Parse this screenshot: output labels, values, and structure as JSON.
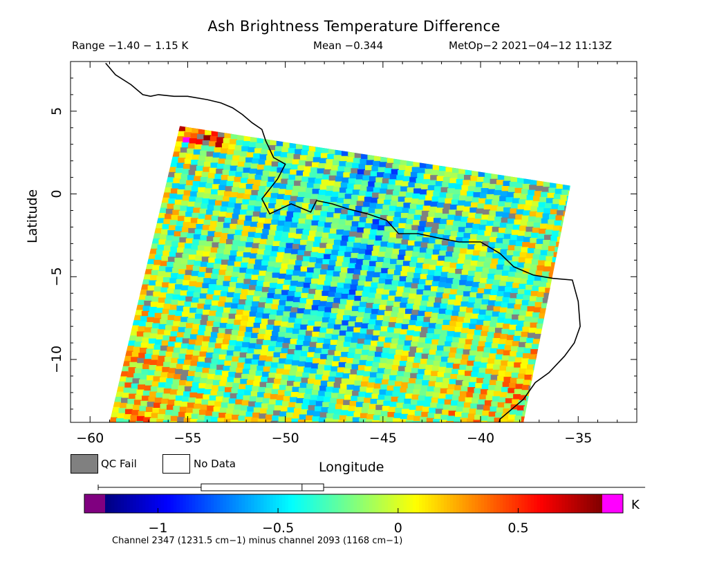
{
  "header": {
    "title": "Ash Brightness Temperature Difference",
    "range": "Range −1.40 − 1.15 K",
    "mean": "Mean −0.344",
    "satellite": "MetOp−2 2021−04−12 11:13Z"
  },
  "legend": {
    "qc_fail": "QC Fail",
    "no_data": "No Data",
    "unit": "K"
  },
  "footnote": "Channel 2347 (1231.5 cm−1) minus channel 2093 (1168 cm−1)",
  "colors": {
    "qc_fail": "#808080",
    "under_range": "#800080",
    "over_range": "#ff00ff",
    "coastline": "#000000"
  },
  "chart_data": {
    "type": "heatmap",
    "title": "Ash Brightness Temperature Difference",
    "xlabel": "Longitude",
    "ylabel": "Latitude",
    "xlim": [
      -61,
      -32
    ],
    "ylim": [
      -13.8,
      8
    ],
    "xticks": [
      -60,
      -55,
      -50,
      -45,
      -40,
      -35
    ],
    "xtick_labels": [
      "−60",
      "−55",
      "−50",
      "−45",
      "−40",
      "−35"
    ],
    "yticks": [
      5,
      0,
      -5,
      -10
    ],
    "ytick_labels": [
      "5",
      "0",
      "−5",
      "−10"
    ],
    "value_range_K": [
      -1.4,
      1.15
    ],
    "mean_K": -0.344,
    "swath_corners_lonlat": [
      [
        -55.4,
        4.1
      ],
      [
        -35.4,
        0.5
      ],
      [
        -37.8,
        -13.8
      ],
      [
        -59.0,
        -13.8
      ]
    ],
    "colorbar": {
      "range": [
        -1.22,
        0.85
      ],
      "ticks": [
        -1,
        -0.5,
        0,
        0.5
      ],
      "tick_labels": [
        "−1",
        "−0.5",
        "0",
        "0.5"
      ],
      "box_range": [
        -0.82,
        -0.31
      ],
      "box_median": -0.4,
      "whisker_range": [
        -1.22,
        1.0
      ],
      "under_color": "#800080",
      "over_color": "#ff00ff"
    },
    "coastline_lonlat": [
      [
        -59.2,
        7.9
      ],
      [
        -58.7,
        7.2
      ],
      [
        -57.9,
        6.6
      ],
      [
        -57.3,
        6.0
      ],
      [
        -56.9,
        5.9
      ],
      [
        -56.5,
        6.0
      ],
      [
        -55.7,
        5.9
      ],
      [
        -55.0,
        5.9
      ],
      [
        -54.0,
        5.7
      ],
      [
        -53.3,
        5.5
      ],
      [
        -52.7,
        5.2
      ],
      [
        -52.2,
        4.8
      ],
      [
        -51.7,
        4.3
      ],
      [
        -51.2,
        3.9
      ],
      [
        -51.0,
        3.2
      ],
      [
        -50.6,
        2.2
      ],
      [
        -50.0,
        1.8
      ],
      [
        -50.4,
        0.9
      ],
      [
        -51.2,
        -0.3
      ],
      [
        -50.8,
        -1.2
      ],
      [
        -49.7,
        -0.6
      ],
      [
        -48.7,
        -1.1
      ],
      [
        -48.4,
        -0.4
      ],
      [
        -47.6,
        -0.6
      ],
      [
        -46.8,
        -0.9
      ],
      [
        -45.8,
        -1.2
      ],
      [
        -44.8,
        -1.6
      ],
      [
        -44.2,
        -2.4
      ],
      [
        -43.2,
        -2.4
      ],
      [
        -42.0,
        -2.7
      ],
      [
        -41.1,
        -2.9
      ],
      [
        -40.0,
        -2.9
      ],
      [
        -39.0,
        -3.6
      ],
      [
        -38.3,
        -4.4
      ],
      [
        -37.3,
        -4.9
      ],
      [
        -36.3,
        -5.1
      ],
      [
        -35.3,
        -5.2
      ],
      [
        -35.0,
        -6.5
      ],
      [
        -34.9,
        -8.0
      ],
      [
        -35.2,
        -9.0
      ],
      [
        -35.7,
        -9.8
      ],
      [
        -36.5,
        -10.8
      ],
      [
        -37.2,
        -11.4
      ],
      [
        -37.8,
        -12.4
      ],
      [
        -38.4,
        -13.0
      ],
      [
        -39.0,
        -13.6
      ],
      [
        -39.1,
        -14.0
      ]
    ]
  }
}
